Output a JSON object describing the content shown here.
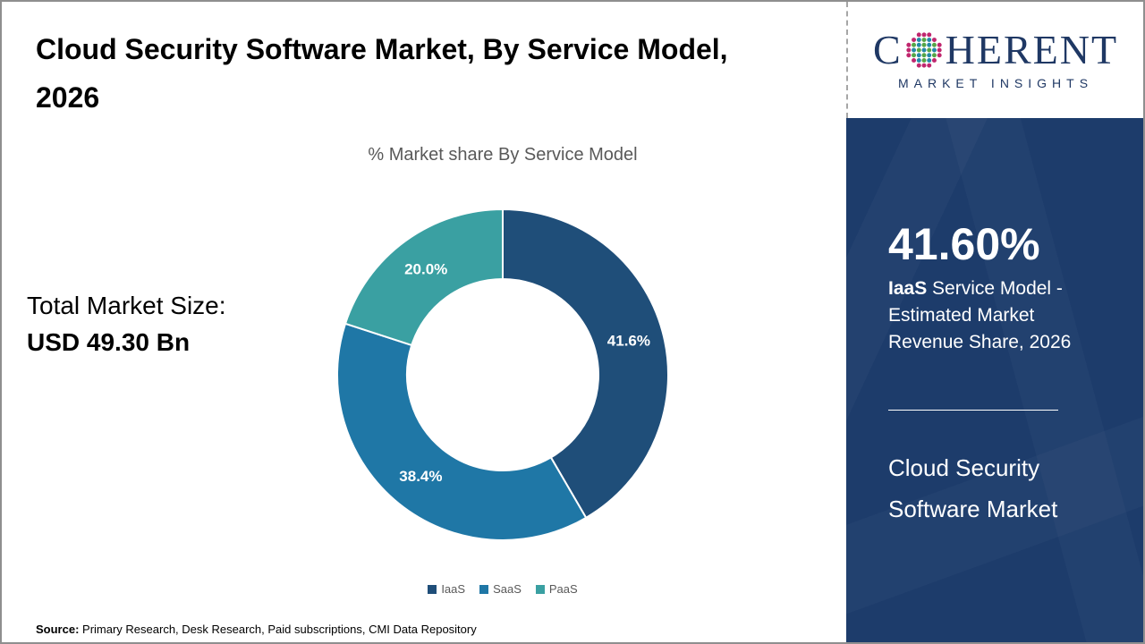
{
  "page": {
    "title": "Cloud Security Software Market, By Service Model, 2026",
    "source_label": "Source:",
    "source_text": " Primary Research, Desk Research, Paid subscriptions, CMI Data Repository"
  },
  "left_panel": {
    "total_label": "Total Market Size:",
    "total_value": "USD 49.30 Bn"
  },
  "chart_data": {
    "type": "pie",
    "subtype": "donut",
    "title": "% Market share By Service Model",
    "categories": [
      "IaaS",
      "SaaS",
      "PaaS"
    ],
    "values": [
      41.6,
      38.4,
      20.0
    ],
    "labels": [
      "41.6%",
      "38.4%",
      "20.0%"
    ],
    "colors": [
      "#1F4E79",
      "#1F77A6",
      "#3AA0A2"
    ],
    "start_angle_deg": 0,
    "direction": "clockwise",
    "inner_radius_ratio": 0.58,
    "legend_position": "bottom",
    "label_color": "#FFFFFF",
    "legend_text_color": "#595959"
  },
  "sidebar": {
    "logo": {
      "text_before": "C",
      "text_after": "HERENT",
      "subtext": "MARKET INSIGHTS",
      "color": "#1F3864"
    },
    "panel_bg": "#1D3C6B",
    "stat_value": "41.60%",
    "stat_bold": "IaaS",
    "stat_rest": " Service Model - Estimated Market Revenue Share, 2026",
    "market_name": "Cloud Security Software Market"
  }
}
